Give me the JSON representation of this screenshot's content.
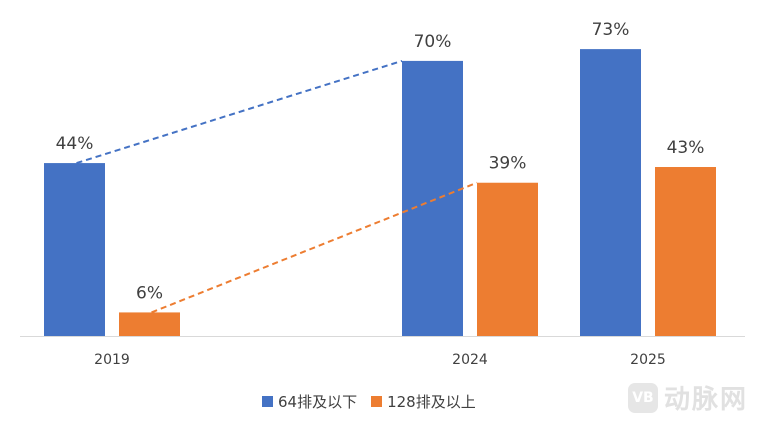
{
  "chart_data": {
    "type": "bar",
    "categories": [
      "2019",
      "2024",
      "2025"
    ],
    "series": [
      {
        "name": "64排及以下",
        "color": "#4472c4",
        "values": [
          44,
          70,
          73
        ],
        "labels": [
          "44%",
          "70%",
          "73%"
        ]
      },
      {
        "name": "128排及以上",
        "color": "#ed7d31",
        "values": [
          6,
          39,
          43
        ],
        "labels": [
          "6%",
          "39%",
          "43%"
        ]
      }
    ],
    "ylim": [
      0,
      80
    ],
    "grid": false,
    "legend_position": "bottom",
    "trend_lines": [
      {
        "series": "64排及以下",
        "from": "2019",
        "to": "2024",
        "style": "dashed"
      },
      {
        "series": "128排及以上",
        "from": "2019",
        "to": "2024",
        "style": "dashed"
      }
    ]
  },
  "watermark": {
    "logo": "VB",
    "text": "动脉网"
  }
}
